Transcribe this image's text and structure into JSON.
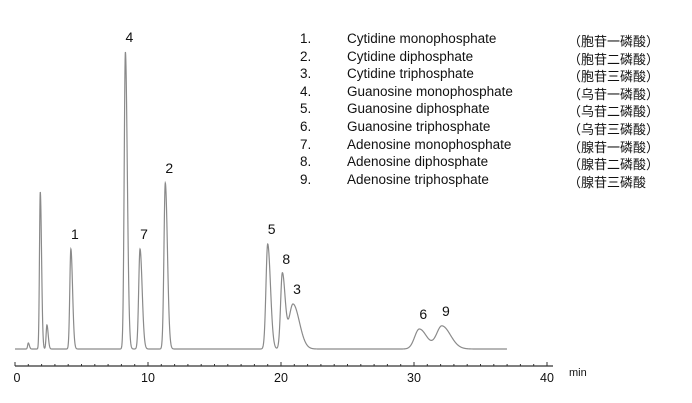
{
  "chart_data": {
    "type": "line",
    "xlabel": "min",
    "xlim": [
      0,
      40
    ],
    "x_ticks": [
      "0",
      "10",
      "20",
      "30",
      "40"
    ],
    "y_axis": "none (relative detector response)",
    "grid": false,
    "trace_end_min": 37,
    "line_color": "#8a8a8a",
    "peaks": [
      {
        "label": "",
        "rt": 1.0,
        "height": 6,
        "width": 0.05
      },
      {
        "label": "",
        "rt": 1.9,
        "height": 157,
        "width": 0.06
      },
      {
        "label": "",
        "rt": 2.4,
        "height": 24,
        "width": 0.06
      },
      {
        "label": "1",
        "rt": 4.2,
        "height": 100,
        "width": 0.08
      },
      {
        "label": "4",
        "rt": 8.3,
        "height": 297,
        "width": 0.09
      },
      {
        "label": "7",
        "rt": 9.4,
        "height": 100,
        "width": 0.1
      },
      {
        "label": "2",
        "rt": 11.3,
        "height": 166,
        "width": 0.1
      },
      {
        "label": "5",
        "rt": 19.0,
        "height": 105,
        "width": 0.13
      },
      {
        "label": "8",
        "rt": 20.1,
        "height": 75,
        "width": 0.13
      },
      {
        "label": "3",
        "rt": 20.9,
        "height": 45,
        "width": 0.3
      },
      {
        "label": "6",
        "rt": 30.4,
        "height": 20,
        "width": 0.35
      },
      {
        "label": "9",
        "rt": 32.1,
        "height": 23,
        "width": 0.4
      }
    ],
    "legend": [
      {
        "num": "1.",
        "name": "Cytidine monophosphate",
        "cn": "（胞苷一磷酸）"
      },
      {
        "num": "2.",
        "name": "Cytidine diphosphate",
        "cn": "（胞苷二磷酸）"
      },
      {
        "num": "3.",
        "name": "Cytidine triphosphate",
        "cn": "（胞苷三磷酸）"
      },
      {
        "num": "4.",
        "name": "Guanosine monophosphate",
        "cn": "（乌苷一磷酸）"
      },
      {
        "num": "5.",
        "name": "Guanosine diphosphate",
        "cn": "（乌苷二磷酸）"
      },
      {
        "num": "6.",
        "name": "Guanosine triphosphate",
        "cn": "（乌苷三磷酸）"
      },
      {
        "num": "7.",
        "name": "Adenosine monophosphate",
        "cn": "（腺苷一磷酸）"
      },
      {
        "num": "8.",
        "name": "Adenosine diphosphate",
        "cn": "（腺苷二磷酸）"
      },
      {
        "num": "9.",
        "name": "Adenosine triphosphate",
        "cn": "（腺苷三磷酸"
      }
    ]
  }
}
